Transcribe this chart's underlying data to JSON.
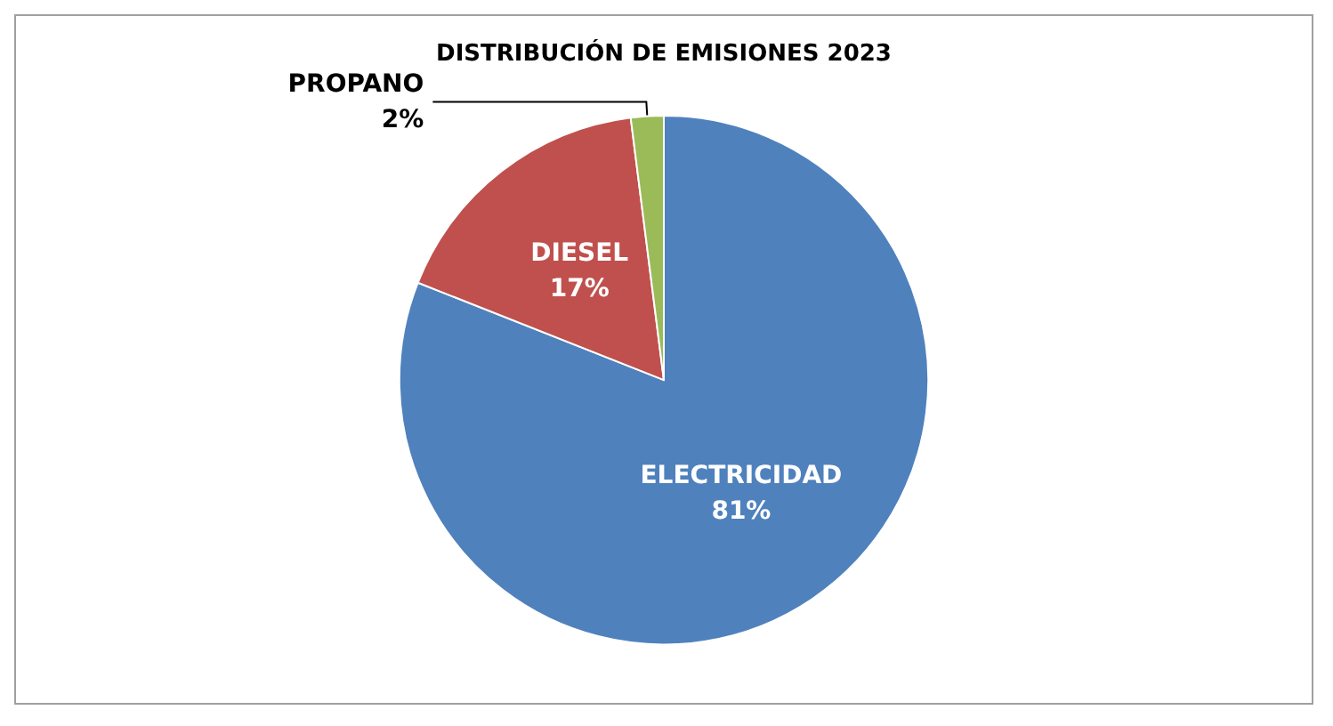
{
  "chart_data": {
    "type": "pie",
    "title": "DISTRIBUCIÓN DE EMISIONES 2023",
    "categories": [
      "ELECTRICIDAD",
      "DIESEL",
      "PROPANO"
    ],
    "values": [
      81,
      17,
      2
    ],
    "colors": [
      "#4f81bd",
      "#c0504d",
      "#9bbb59"
    ],
    "value_labels": [
      "81%",
      "17%",
      "2%"
    ],
    "legend": false
  }
}
